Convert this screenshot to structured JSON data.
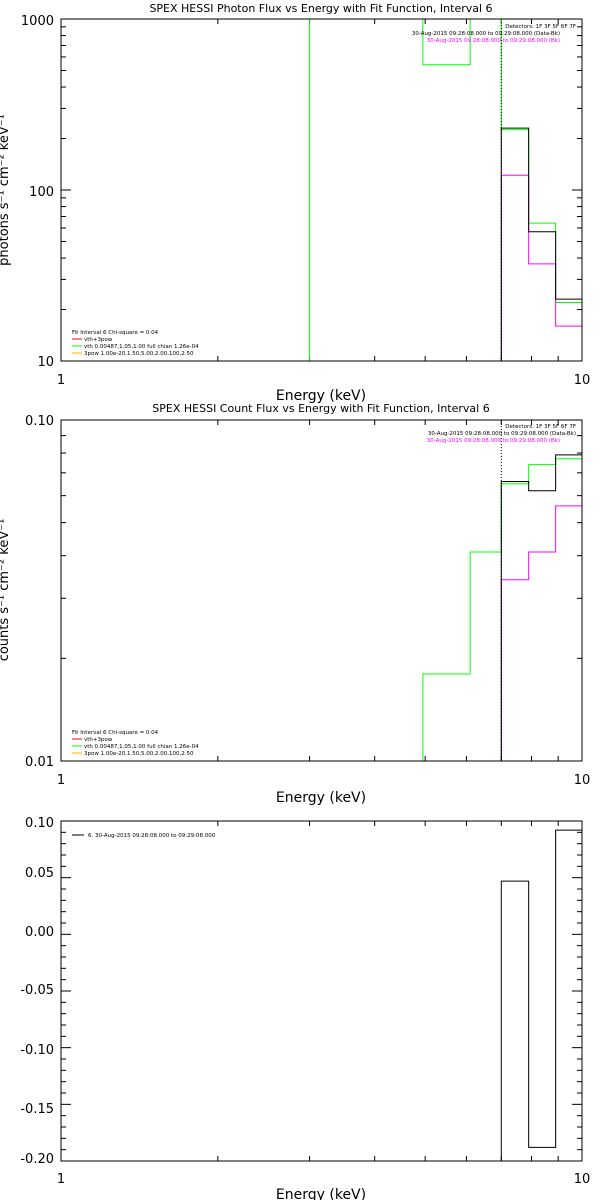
{
  "chart_data": [
    {
      "type": "line",
      "title": "SPEX HESSI Photon Flux vs Energy with Fit Function, Interval 6",
      "xlabel": "Energy (keV)",
      "ylabel": "photons s⁻¹ cm⁻² keV⁻¹",
      "xscale": "log",
      "yscale": "log",
      "xlim": [
        1,
        10
      ],
      "ylim": [
        10,
        1000
      ],
      "x_ticks": [
        {
          "value": 1,
          "label": "1"
        },
        {
          "value": 10,
          "label": "10"
        }
      ],
      "y_ticks": [
        {
          "value": 10,
          "label": "10"
        },
        {
          "value": 100,
          "label": "100"
        },
        {
          "value": 1000,
          "label": "1000"
        }
      ],
      "header_lines": [
        {
          "text": "Detectors: 1F 3F 5F 6F 7F",
          "color": "#000000"
        },
        {
          "text": "30-Aug-2015 09:28:08.000 to 09:29:08.000 (Data-Bk)",
          "color": "#000000"
        },
        {
          "text": "30-Aug-2015 09:28:08.000 to 09:29:08.000 (Bk)",
          "color": "#ff00ff"
        }
      ],
      "legend_lines": [
        {
          "text": "Fit Interval  6    Chi-square = 0.04",
          "color": "#000000"
        },
        {
          "text": "vth+3pow",
          "color": "#ff0000"
        },
        {
          "text": "vth 0.00487,1.05,1.00  full chian 1.26e-04",
          "color": "#00ff00"
        },
        {
          "text": "3pow 1.00e-20,1.50,5.00,2.00,100,2.50",
          "color": "#ffb000"
        }
      ],
      "series": [
        {
          "role": "data",
          "color": "#000000",
          "edges": [
            7.0,
            7.9,
            8.9,
            10.0
          ],
          "values": [
            230,
            57,
            23
          ]
        },
        {
          "role": "background",
          "color": "#ff00ff",
          "edges": [
            7.0,
            7.9,
            8.9,
            10.0
          ],
          "values": [
            122,
            37,
            16
          ]
        },
        {
          "role": "fit",
          "color": "#00ff00",
          "edges": [
            3.0,
            4.95,
            6.1,
            7.0,
            7.9,
            8.9,
            10.0
          ],
          "values": [
            5000,
            540,
            5000,
            225,
            64,
            22,
            10
          ]
        }
      ],
      "fit_interval_marker": 7.0
    },
    {
      "type": "line",
      "title": "SPEX HESSI Count Flux vs Energy with Fit Function, Interval 6",
      "xlabel": "Energy (keV)",
      "ylabel": "counts s⁻¹ cm⁻² keV⁻¹",
      "xscale": "log",
      "yscale": "log",
      "xlim": [
        1,
        10
      ],
      "ylim": [
        0.01,
        0.1
      ],
      "x_ticks": [
        {
          "value": 1,
          "label": "1"
        },
        {
          "value": 10,
          "label": "10"
        }
      ],
      "y_ticks": [
        {
          "value": 0.01,
          "label": "0.01"
        },
        {
          "value": 0.1,
          "label": "0.10"
        }
      ],
      "header_lines": [
        {
          "text": "Detectors: 1F 3F 5F 6F 7F",
          "color": "#000000"
        },
        {
          "text": "30-Aug-2015 09:28:08.000 to 09:29:08.000 (Data-Bk)",
          "color": "#000000"
        },
        {
          "text": "30-Aug-2015 09:28:08.000 to 09:29:08.000 (Bk)",
          "color": "#ff00ff"
        }
      ],
      "legend_lines": [
        {
          "text": "Fit Interval  6    Chi-square = 0.04",
          "color": "#000000"
        },
        {
          "text": "vth+3pow",
          "color": "#ff0000"
        },
        {
          "text": "vth 0.00487,1.05,1.00  full chian 1.26e-04",
          "color": "#00ff00"
        },
        {
          "text": "3pow 1.00e-20,1.50,5.00,2.00,100,2.50",
          "color": "#ffb000"
        }
      ],
      "series": [
        {
          "role": "data",
          "color": "#000000",
          "edges": [
            7.0,
            7.9,
            8.9,
            10.0
          ],
          "values": [
            0.066,
            0.062,
            0.079
          ]
        },
        {
          "role": "background",
          "color": "#ff00ff",
          "edges": [
            7.0,
            7.9,
            8.9,
            10.0
          ],
          "values": [
            0.034,
            0.041,
            0.056
          ]
        },
        {
          "role": "fit",
          "color": "#00ff00",
          "edges": [
            4.95,
            6.1,
            7.0,
            7.9,
            8.9,
            10.0
          ],
          "values": [
            0.018,
            0.041,
            0.065,
            0.074,
            0.077,
            0.005
          ]
        }
      ],
      "fit_interval_marker": 7.0
    },
    {
      "type": "line",
      "title": "",
      "xlabel": "Energy (keV)",
      "ylabel": "",
      "xscale": "log",
      "yscale": "linear",
      "xlim": [
        1,
        10
      ],
      "ylim": [
        -0.2,
        0.1
      ],
      "x_ticks": [
        {
          "value": 1,
          "label": "1"
        },
        {
          "value": 10,
          "label": "10"
        }
      ],
      "y_ticks": [
        {
          "value": 0.1,
          "label": "0.10"
        },
        {
          "value": 0.05,
          "label": "0.05"
        },
        {
          "value": 0.0,
          "label": "0.00"
        },
        {
          "value": -0.05,
          "label": "-0.05"
        },
        {
          "value": -0.1,
          "label": "-0.10"
        },
        {
          "value": -0.15,
          "label": "-0.15"
        },
        {
          "value": -0.2,
          "label": "-0.20"
        }
      ],
      "legend_lines": [
        {
          "text": "6. 30-Aug-2015 09:28:08.000 to 09:29:08.000",
          "color": "#000000"
        }
      ],
      "series": [
        {
          "role": "residuals",
          "color": "#000000",
          "edges": [
            7.0,
            7.9,
            8.9,
            10.0
          ],
          "values": [
            0.047,
            -0.188,
            0.092
          ]
        }
      ]
    }
  ]
}
